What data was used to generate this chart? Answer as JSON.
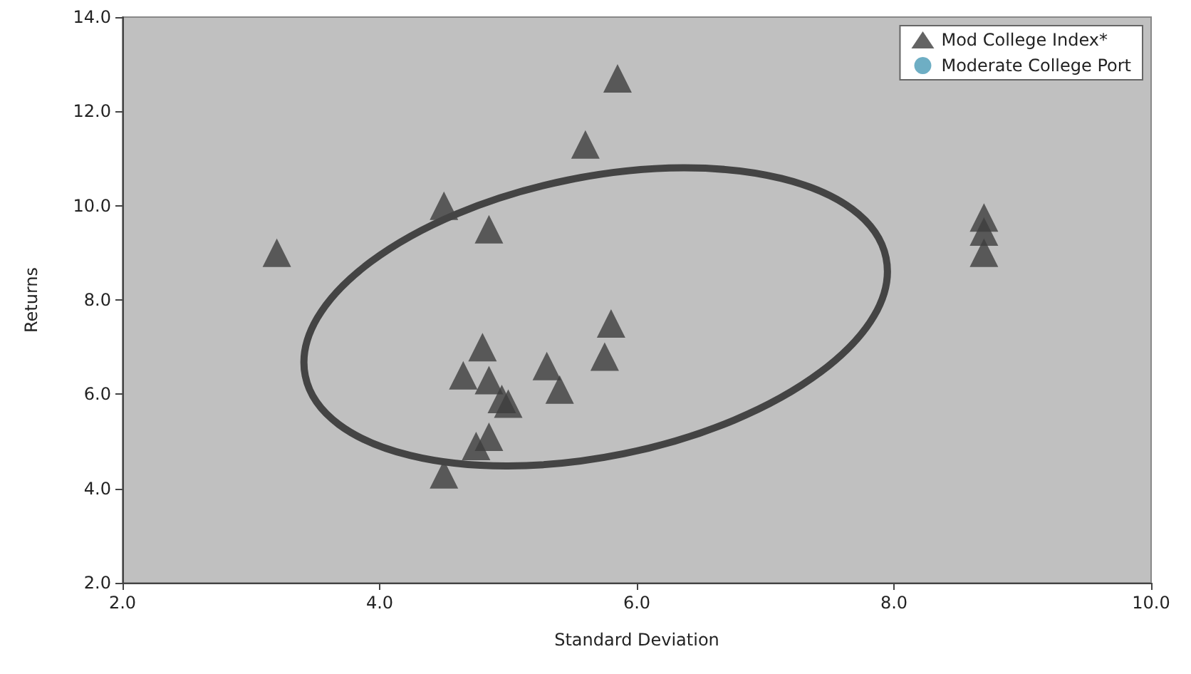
{
  "chart_data": {
    "type": "scatter",
    "xlabel": "Standard Deviation",
    "ylabel": "Returns",
    "xlim": [
      2,
      10
    ],
    "xticks": [
      {
        "value": 2,
        "label": "2.0"
      },
      {
        "value": 4,
        "label": "4.0"
      },
      {
        "value": 6,
        "label": "6.0"
      },
      {
        "value": 8,
        "label": "8.0"
      },
      {
        "value": 10,
        "label": "10.0"
      }
    ],
    "ylim": [
      2,
      14
    ],
    "yticks": [
      {
        "value": 2,
        "label": "2.0"
      },
      {
        "value": 4,
        "label": "4.0"
      },
      {
        "value": 6,
        "label": "6.0"
      },
      {
        "value": 8,
        "label": "8.0"
      },
      {
        "value": 10,
        "label": "10.0"
      },
      {
        "value": 12,
        "label": "12.0"
      },
      {
        "value": 14,
        "label": "14.0"
      }
    ],
    "grid": false,
    "legend": "top right",
    "series": [
      {
        "name": "Mod College Index*",
        "color": "#3d3d3d",
        "marker": "triangle",
        "x": [
          3.2,
          4.5,
          4.85,
          5.6,
          5.85,
          5.8,
          5.75,
          5.3,
          5.4,
          4.8,
          4.65,
          4.85,
          5.0,
          4.95,
          4.85,
          4.75,
          4.5,
          8.7,
          8.7,
          8.7
        ],
        "values": [
          9.0,
          10.0,
          9.5,
          11.3,
          12.7,
          7.5,
          6.8,
          6.6,
          6.1,
          7.0,
          6.4,
          6.3,
          5.8,
          5.9,
          5.1,
          4.9,
          4.3,
          9.75,
          9.45,
          9.0
        ]
      },
      {
        "name": "Moderate College Port",
        "color": "#4a9ab5",
        "marker": "circle"
      }
    ]
  }
}
